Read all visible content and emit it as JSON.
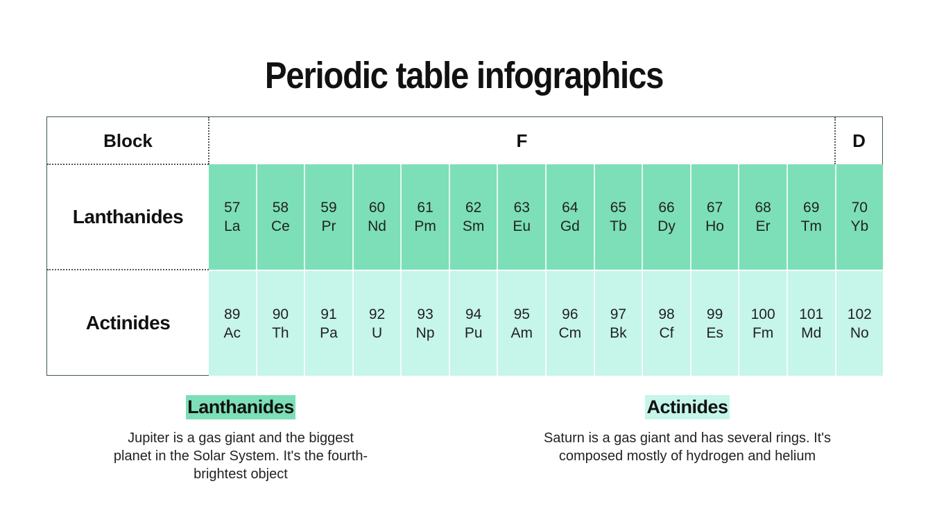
{
  "title": "Periodic table infographics",
  "table": {
    "block_label": "Block",
    "block_f": "F",
    "block_d": "D",
    "rows": [
      {
        "label": "Lanthanides",
        "color": "#7ddfb7",
        "cells": [
          [
            "57",
            "La"
          ],
          [
            "58",
            "Ce"
          ],
          [
            "59",
            "Pr"
          ],
          [
            "60",
            "Nd"
          ],
          [
            "61",
            "Pm"
          ],
          [
            "62",
            "Sm"
          ],
          [
            "63",
            "Eu"
          ],
          [
            "64",
            "Gd"
          ],
          [
            "65",
            "Tb"
          ],
          [
            "66",
            "Dy"
          ],
          [
            "67",
            "Ho"
          ],
          [
            "68",
            "Er"
          ],
          [
            "69",
            "Tm"
          ],
          [
            "70",
            "Yb"
          ]
        ]
      },
      {
        "label": "Actinides",
        "color": "#c6f5ea",
        "cells": [
          [
            "89",
            "Ac"
          ],
          [
            "90",
            "Th"
          ],
          [
            "91",
            "Pa"
          ],
          [
            "92",
            "U"
          ],
          [
            "93",
            "Np"
          ],
          [
            "94",
            "Pu"
          ],
          [
            "95",
            "Am"
          ],
          [
            "96",
            "Cm"
          ],
          [
            "97",
            "Bk"
          ],
          [
            "98",
            "Cf"
          ],
          [
            "99",
            "Es"
          ],
          [
            "100",
            "Fm"
          ],
          [
            "101",
            "Md"
          ],
          [
            "102",
            "No"
          ]
        ]
      }
    ]
  },
  "sections": [
    {
      "heading": "Lanthanides",
      "color": "#7ddfb7",
      "text": "Jupiter is a gas giant and the biggest planet in the Solar System. It's the fourth-brightest object"
    },
    {
      "heading": "Actinides",
      "color": "#c6f5ea",
      "text": "Saturn is a gas giant and has several rings. It's composed mostly of hydrogen and helium"
    }
  ]
}
